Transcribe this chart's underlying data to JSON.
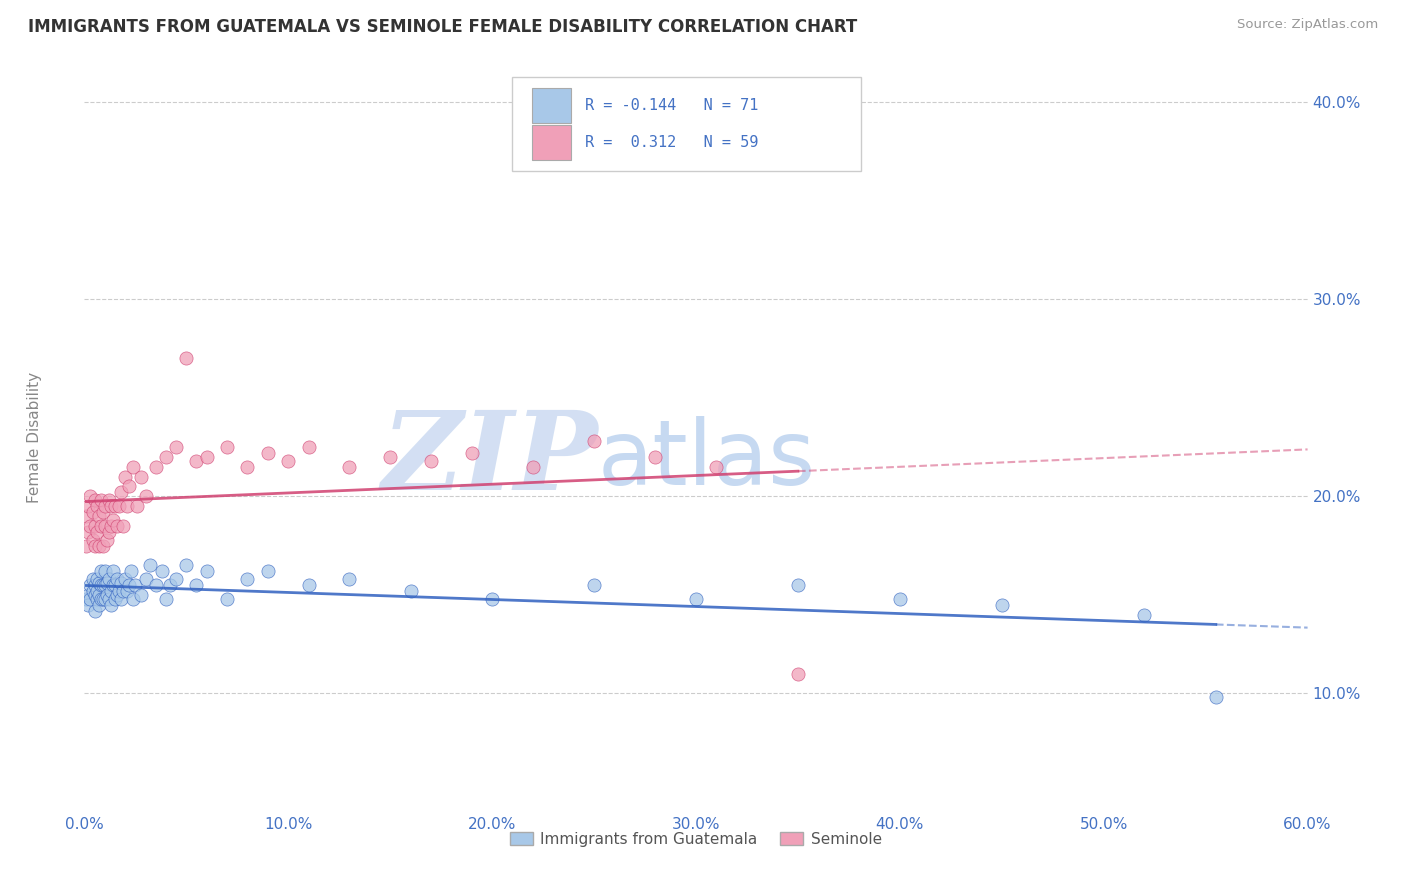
{
  "title": "IMMIGRANTS FROM GUATEMALA VS SEMINOLE FEMALE DISABILITY CORRELATION CHART",
  "source": "Source: ZipAtlas.com",
  "ylabel": "Female Disability",
  "watermark_zip": "ZIP",
  "watermark_atlas": "atlas",
  "series": [
    {
      "name": "Immigrants from Guatemala",
      "R": -0.144,
      "N": 71,
      "color": "#a8c8e8",
      "trend_color": "#3060c0",
      "x": [
        0.001,
        0.002,
        0.002,
        0.003,
        0.003,
        0.004,
        0.004,
        0.005,
        0.005,
        0.005,
        0.006,
        0.006,
        0.006,
        0.007,
        0.007,
        0.007,
        0.008,
        0.008,
        0.008,
        0.009,
        0.009,
        0.01,
        0.01,
        0.01,
        0.011,
        0.011,
        0.012,
        0.012,
        0.013,
        0.013,
        0.014,
        0.014,
        0.015,
        0.015,
        0.016,
        0.016,
        0.017,
        0.018,
        0.018,
        0.019,
        0.02,
        0.021,
        0.022,
        0.023,
        0.024,
        0.025,
        0.028,
        0.03,
        0.032,
        0.035,
        0.038,
        0.04,
        0.042,
        0.045,
        0.05,
        0.055,
        0.06,
        0.07,
        0.08,
        0.09,
        0.11,
        0.13,
        0.16,
        0.2,
        0.25,
        0.3,
        0.35,
        0.4,
        0.45,
        0.52,
        0.555
      ],
      "y": [
        0.148,
        0.15,
        0.145,
        0.155,
        0.148,
        0.152,
        0.158,
        0.15,
        0.155,
        0.142,
        0.148,
        0.152,
        0.158,
        0.145,
        0.15,
        0.156,
        0.148,
        0.155,
        0.162,
        0.148,
        0.155,
        0.148,
        0.155,
        0.162,
        0.15,
        0.156,
        0.148,
        0.158,
        0.152,
        0.145,
        0.155,
        0.162,
        0.148,
        0.155,
        0.15,
        0.158,
        0.152,
        0.148,
        0.156,
        0.152,
        0.158,
        0.152,
        0.155,
        0.162,
        0.148,
        0.155,
        0.15,
        0.158,
        0.165,
        0.155,
        0.162,
        0.148,
        0.155,
        0.158,
        0.165,
        0.155,
        0.162,
        0.148,
        0.158,
        0.162,
        0.155,
        0.158,
        0.152,
        0.148,
        0.155,
        0.148,
        0.155,
        0.148,
        0.145,
        0.14,
        0.098
      ]
    },
    {
      "name": "Seminole",
      "R": 0.312,
      "N": 59,
      "color": "#f0a0b8",
      "trend_color": "#d04070",
      "x": [
        0.001,
        0.001,
        0.002,
        0.002,
        0.003,
        0.003,
        0.004,
        0.004,
        0.005,
        0.005,
        0.005,
        0.006,
        0.006,
        0.007,
        0.007,
        0.008,
        0.008,
        0.009,
        0.009,
        0.01,
        0.01,
        0.011,
        0.012,
        0.012,
        0.013,
        0.013,
        0.014,
        0.015,
        0.016,
        0.017,
        0.018,
        0.019,
        0.02,
        0.021,
        0.022,
        0.024,
        0.026,
        0.028,
        0.03,
        0.035,
        0.04,
        0.045,
        0.05,
        0.055,
        0.06,
        0.07,
        0.08,
        0.09,
        0.1,
        0.11,
        0.13,
        0.15,
        0.17,
        0.19,
        0.22,
        0.25,
        0.28,
        0.31,
        0.35
      ],
      "y": [
        0.19,
        0.175,
        0.182,
        0.195,
        0.185,
        0.2,
        0.178,
        0.192,
        0.185,
        0.198,
        0.175,
        0.182,
        0.195,
        0.175,
        0.19,
        0.185,
        0.198,
        0.175,
        0.192,
        0.185,
        0.195,
        0.178,
        0.182,
        0.198,
        0.185,
        0.195,
        0.188,
        0.195,
        0.185,
        0.195,
        0.202,
        0.185,
        0.21,
        0.195,
        0.205,
        0.215,
        0.195,
        0.21,
        0.2,
        0.215,
        0.22,
        0.225,
        0.27,
        0.218,
        0.22,
        0.225,
        0.215,
        0.222,
        0.218,
        0.225,
        0.215,
        0.22,
        0.218,
        0.222,
        0.215,
        0.228,
        0.22,
        0.215,
        0.11
      ]
    }
  ],
  "xmin": 0.0,
  "xmax": 0.6,
  "ymin": 0.04,
  "ymax": 0.42,
  "yticks": [
    0.1,
    0.2,
    0.3,
    0.4
  ],
  "ytick_labels": [
    "10.0%",
    "20.0%",
    "30.0%",
    "40.0%"
  ],
  "xticks": [
    0.0,
    0.1,
    0.2,
    0.3,
    0.4,
    0.5,
    0.6
  ],
  "xtick_labels": [
    "0.0%",
    "10.0%",
    "20.0%",
    "30.0%",
    "40.0%",
    "50.0%",
    "60.0%"
  ],
  "axis_tick_color": "#4472c4",
  "grid_color": "#cccccc",
  "watermark_color": "#c8d8f0",
  "legend_R_color": "#4472c4",
  "bg_color": "#ffffff"
}
